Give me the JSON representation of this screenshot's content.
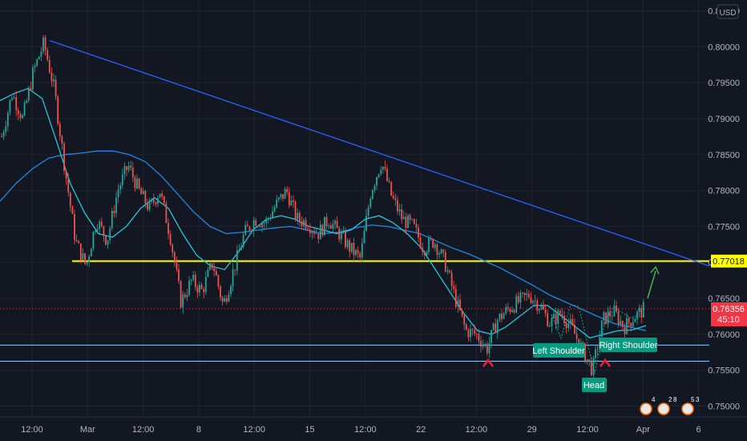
{
  "currency_button": "USD",
  "colors": {
    "background": "#131722",
    "grid": "#1f2430",
    "up_candle": "#26a69a",
    "down_candle": "#ef5350",
    "trendline": "#2962ff",
    "ma_fast": "#26c6da",
    "ma_slow": "#1e88e5",
    "support_line": "#ffff00",
    "price_tag": "#f23645",
    "annotation_box": "#089981",
    "arrow": "#4caf50",
    "marker": "#ff1744"
  },
  "chart_data": {
    "type": "candlestick",
    "y_ticks": [
      "0.75000",
      "0.75500",
      "0.76000",
      "0.76500",
      "0.77000",
      "0.77500",
      "0.78000",
      "0.78500",
      "0.79000",
      "0.79500",
      "0.80000",
      "0.80500"
    ],
    "x_ticks": [
      "12:00",
      "Mar",
      "12:00",
      "8",
      "12:00",
      "15",
      "12:00",
      "22",
      "12:00",
      "29",
      "12:00",
      "Apr",
      "6"
    ],
    "ylim": [
      0.7485,
      0.8065
    ],
    "price_path": [
      0.7875,
      0.7935,
      0.79,
      0.7965,
      0.8005,
      0.794,
      0.783,
      0.773,
      0.7695,
      0.776,
      0.773,
      0.78,
      0.7835,
      0.78,
      0.7775,
      0.78,
      0.7735,
      0.7645,
      0.7675,
      0.766,
      0.77,
      0.764,
      0.769,
      0.774,
      0.776,
      0.7755,
      0.778,
      0.78,
      0.776,
      0.7755,
      0.774,
      0.776,
      0.774,
      0.772,
      0.7705,
      0.78,
      0.784,
      0.779,
      0.776,
      0.775,
      0.772,
      0.773,
      0.77,
      0.765,
      0.7605,
      0.76,
      0.758,
      0.762,
      0.7635,
      0.7645,
      0.7655,
      0.764,
      0.7615,
      0.763,
      0.761,
      0.758,
      0.755,
      0.762,
      0.7632,
      0.761,
      0.7625,
      0.7636
    ],
    "ma_fast": [
      0.7925,
      0.7935,
      0.7942,
      0.7928,
      0.787,
      0.781,
      0.777,
      0.774,
      0.7735,
      0.775,
      0.7775,
      0.779,
      0.7775,
      0.774,
      0.771,
      0.7695,
      0.769,
      0.7715,
      0.7745,
      0.776,
      0.7765,
      0.776,
      0.775,
      0.7745,
      0.774,
      0.7745,
      0.776,
      0.7765,
      0.7755,
      0.774,
      0.772,
      0.769,
      0.766,
      0.763,
      0.7605,
      0.76,
      0.761,
      0.7625,
      0.764,
      0.764,
      0.7625,
      0.761,
      0.7595,
      0.76,
      0.7605,
      0.7606,
      0.7612
    ],
    "ma_slow": [
      0.7785,
      0.781,
      0.783,
      0.7845,
      0.785,
      0.7852,
      0.7855,
      0.7855,
      0.785,
      0.784,
      0.782,
      0.7795,
      0.777,
      0.775,
      0.774,
      0.7742,
      0.7745,
      0.7748,
      0.775,
      0.7745,
      0.774,
      0.7742,
      0.7748,
      0.7752,
      0.775,
      0.7745,
      0.774,
      0.773,
      0.772,
      0.7712,
      0.7702,
      0.7692,
      0.768,
      0.7668,
      0.7655,
      0.7645,
      0.7635,
      0.7625,
      0.7615,
      0.761,
      0.7605
    ],
    "trendline": [
      0.80085,
      0.7695
    ],
    "support_level": 0.77018,
    "neckline_levels": [
      0.7585,
      0.75625
    ],
    "current_price": "0.76356",
    "support_label": "0.77018",
    "countdown": "45:10",
    "annotations": [
      "Left Shoulder",
      "Head",
      "Right Shoulder"
    ],
    "events_counts": [
      "4",
      "2",
      "8",
      "5",
      "3"
    ]
  }
}
